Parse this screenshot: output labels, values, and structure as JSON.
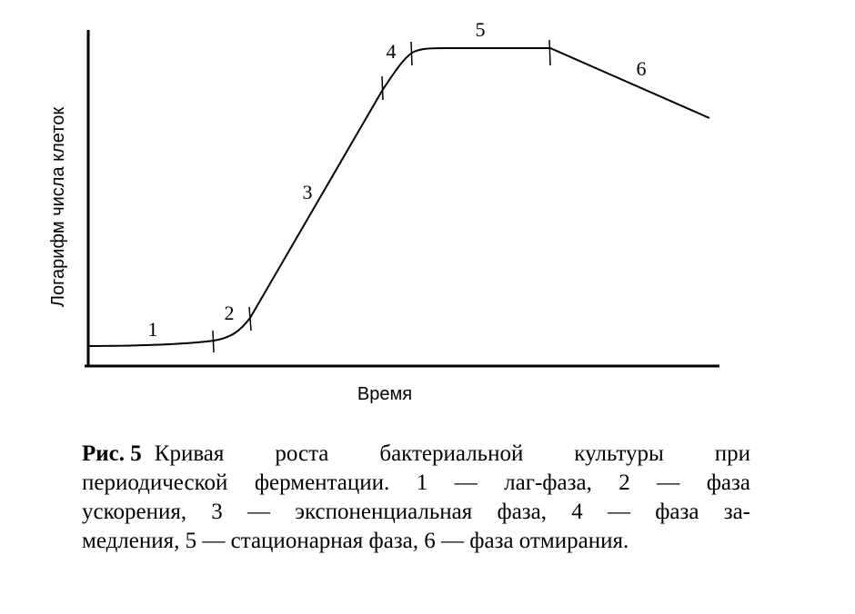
{
  "figure": {
    "y_axis_label": "Логарифм числа клеток",
    "x_axis_label": "Время",
    "phase_labels": [
      "1",
      "2",
      "3",
      "4",
      "5",
      "6"
    ]
  },
  "caption": {
    "label": "Рис. 5",
    "lines": [
      "Кривая роста бактериальной культуры при",
      "периодической ферментации. 1 — лаг-фаза, 2 — фаза",
      "ускорения, 3 — экспоненциальная фаза, 4 — фаза за-",
      "медления, 5 — стационарная фаза, 6 — фаза отмирания."
    ]
  }
}
